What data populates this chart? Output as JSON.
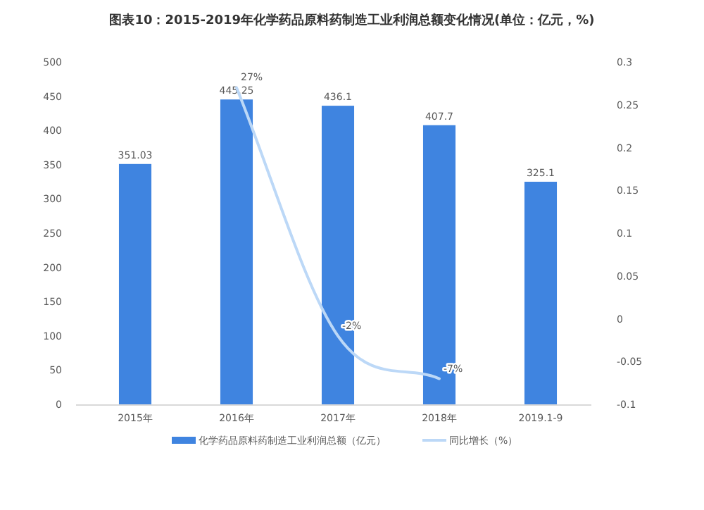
{
  "chart_data": {
    "type": "bar",
    "title": "图表10：2015-2019年化学药品原料药制造工业利润总额变化情况(单位：亿元，%)",
    "categories": [
      "2015年",
      "2016年",
      "2017年",
      "2018年",
      "2019.1-9"
    ],
    "series": [
      {
        "name": "化学药品原料药制造工业利润总额（亿元）",
        "color": "#3f84e0",
        "values": [
          351.03,
          445.25,
          436.1,
          407.7,
          325.1
        ],
        "value_labels": [
          "351.03",
          "445.25",
          "436.1",
          "407.7",
          "325.1"
        ]
      },
      {
        "name": "同比增长（%）",
        "type": "line",
        "axis": "y2",
        "color": "#bcd8f7",
        "values": [
          null,
          0.27,
          -0.02,
          -0.07,
          null
        ],
        "value_labels": [
          null,
          "27%",
          "-2%",
          "-7%",
          null
        ]
      }
    ],
    "ylim": [
      0,
      500
    ],
    "yticks": [
      0,
      50,
      100,
      150,
      200,
      250,
      300,
      350,
      400,
      450,
      500
    ],
    "y2lim": [
      -0.1,
      0.3
    ],
    "y2ticks": [
      -0.1,
      -0.05,
      0,
      0.05,
      0.1,
      0.15,
      0.2,
      0.25,
      0.3
    ],
    "legend": "bottom",
    "grid": false,
    "marker": "none"
  }
}
